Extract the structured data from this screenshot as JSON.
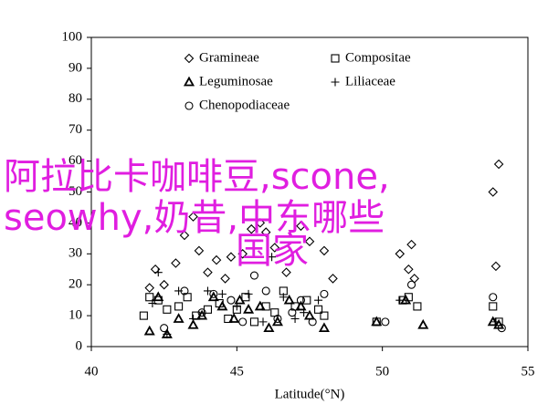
{
  "chart_data": {
    "type": "scatter",
    "x_label": "Latitude(°N)",
    "xlim": [
      40,
      55
    ],
    "xticks": [
      40,
      45,
      50,
      55
    ],
    "ylim": [
      0,
      100
    ],
    "yticks": [
      0,
      10,
      20,
      30,
      40,
      50,
      60,
      70,
      80,
      90,
      100
    ],
    "series": [
      {
        "name": "Gramineae",
        "marker": "diamond",
        "color": "#000000",
        "x": [
          42,
          42.2,
          42.5,
          42.9,
          43.2,
          43.5,
          43.7,
          44,
          44.3,
          44.6,
          44.8,
          45.2,
          45.5,
          45.8,
          46,
          46.3,
          46.7,
          47.2,
          47.5,
          48,
          48.3,
          50.6,
          50.9,
          51.1,
          51,
          53.8,
          53.9,
          54
        ],
        "y": [
          19,
          25,
          20,
          27,
          36,
          42,
          31,
          24,
          28,
          22,
          29,
          30,
          38,
          40,
          37,
          32,
          24,
          39,
          34,
          31,
          22,
          30,
          25,
          22,
          33,
          50,
          26,
          59
        ]
      },
      {
        "name": "Compositae",
        "marker": "square",
        "color": "#000000",
        "x": [
          41.8,
          42,
          42.3,
          42.6,
          43,
          43.3,
          43.6,
          44,
          44.4,
          44.7,
          45,
          45.3,
          45.6,
          46,
          46.3,
          46.6,
          47,
          47.4,
          47.8,
          48,
          49.8,
          50.7,
          50.9,
          51.2,
          53.8,
          54
        ],
        "y": [
          10,
          16,
          15,
          12,
          13,
          16,
          10,
          12,
          14,
          9,
          12,
          16,
          8,
          13,
          11,
          18,
          13,
          15,
          12,
          10,
          8,
          15,
          16,
          13,
          13,
          8
        ]
      },
      {
        "name": "Leguminosae",
        "marker": "triangle",
        "color": "#000000",
        "x": [
          42,
          42.3,
          42.6,
          43,
          43.5,
          43.8,
          44.2,
          44.5,
          44.9,
          45.1,
          45.4,
          45.8,
          46.1,
          46.4,
          46.8,
          47.2,
          47.5,
          48,
          49.8,
          50.8,
          51.4,
          53.8,
          54
        ],
        "y": [
          5,
          16,
          4,
          9,
          7,
          10,
          16,
          13,
          9,
          15,
          12,
          13,
          6,
          8,
          15,
          13,
          10,
          6,
          8,
          15,
          7,
          8,
          7
        ]
      },
      {
        "name": "Liliaceae",
        "marker": "plus",
        "color": "#000000",
        "x": [
          42.1,
          42.3,
          42.6,
          43,
          43.5,
          44,
          44.5,
          45,
          45.4,
          45.9,
          46.2,
          46.6,
          47,
          47.3,
          47.8,
          50.6,
          53.9
        ],
        "y": [
          14,
          24,
          4,
          18,
          9,
          18,
          17,
          13,
          17,
          8,
          29,
          16,
          9,
          11,
          15,
          15,
          8
        ]
      },
      {
        "name": "Chenopodiaceae",
        "marker": "circle",
        "color": "#000000",
        "x": [
          42.5,
          43.2,
          43.8,
          44.2,
          44.8,
          45.2,
          45.6,
          46,
          46.4,
          46.9,
          47.2,
          47.6,
          48,
          50.1,
          51,
          53.8,
          54.1
        ],
        "y": [
          6,
          18,
          11,
          17,
          15,
          8,
          23,
          18,
          9,
          11,
          15,
          8,
          17,
          8,
          20,
          16,
          6
        ]
      }
    ],
    "overlay_text": [
      "阿拉比卡咖啡豆,scone,",
      "seowhy,奶昔,中东哪些",
      "国家"
    ]
  }
}
